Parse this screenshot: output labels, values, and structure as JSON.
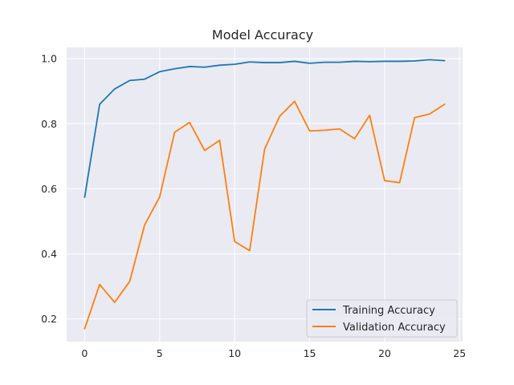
{
  "chart_data": {
    "type": "line",
    "title": "Model Accuracy",
    "xlabel": "",
    "ylabel": "",
    "xlim": [
      -1.2,
      25.2
    ],
    "ylim": [
      0.13,
      1.035
    ],
    "xticks": [
      0,
      5,
      10,
      15,
      20,
      25
    ],
    "yticks": [
      0.2,
      0.4,
      0.6,
      0.8,
      1.0
    ],
    "ytick_labels": [
      "0.2",
      "0.4",
      "0.6",
      "0.8",
      "1.0"
    ],
    "xtick_labels": [
      "0",
      "5",
      "10",
      "15",
      "20",
      "25"
    ],
    "grid": true,
    "legend_position": "lower-right",
    "x": [
      0,
      1,
      2,
      3,
      4,
      5,
      6,
      7,
      8,
      9,
      10,
      11,
      12,
      13,
      14,
      15,
      16,
      17,
      18,
      19,
      20,
      21,
      22,
      23,
      24
    ],
    "series": [
      {
        "name": "Training Accuracy",
        "color": "#1f77b4",
        "values": [
          0.574,
          0.86,
          0.907,
          0.933,
          0.937,
          0.96,
          0.969,
          0.976,
          0.974,
          0.98,
          0.983,
          0.99,
          0.988,
          0.988,
          0.992,
          0.986,
          0.989,
          0.989,
          0.992,
          0.991,
          0.992,
          0.992,
          0.993,
          0.997,
          0.994
        ]
      },
      {
        "name": "Validation Accuracy",
        "color": "#ff7f0e",
        "values": [
          0.17,
          0.306,
          0.251,
          0.315,
          0.489,
          0.575,
          0.774,
          0.804,
          0.718,
          0.749,
          0.438,
          0.41,
          0.722,
          0.823,
          0.869,
          0.778,
          0.78,
          0.784,
          0.754,
          0.826,
          0.625,
          0.619,
          0.819,
          0.83,
          0.86
        ]
      }
    ]
  }
}
